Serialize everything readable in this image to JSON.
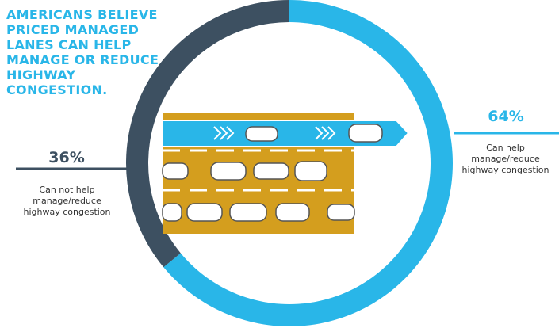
{
  "chart_data": {
    "type": "pie",
    "donut": true,
    "title": "AMERICANS BELIEVE PRICED MANAGED LANES CAN HELP MANAGE OR REDUCE HIGHWAY CONGESTION.",
    "categories": [
      "Can help manage/reduce highway congestion",
      "Can not help manage/reduce highway congestion"
    ],
    "values": [
      64,
      36
    ],
    "value_labels": [
      "64%",
      "36%"
    ],
    "colors": [
      "#29b6e8",
      "#3d5061"
    ]
  }
}
